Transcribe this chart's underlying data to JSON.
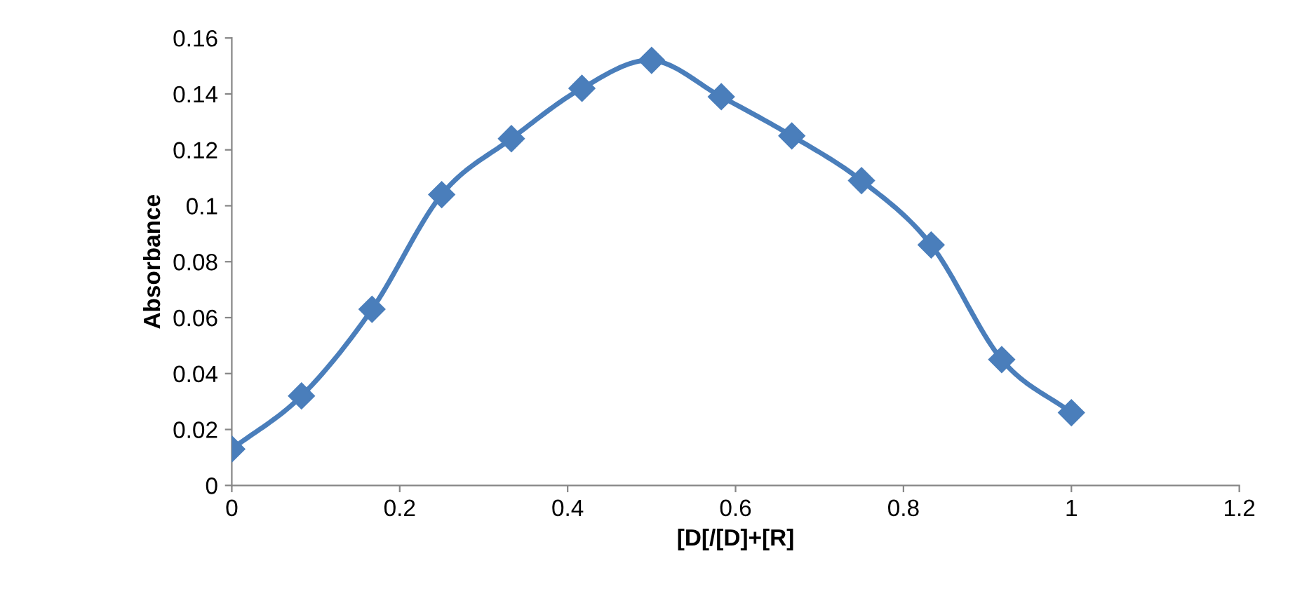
{
  "chart_data": {
    "type": "line",
    "xlabel": "[D[/[D]+[R]",
    "ylabel": "Absorbance",
    "x": [
      0,
      0.083,
      0.167,
      0.25,
      0.333,
      0.417,
      0.5,
      0.583,
      0.667,
      0.75,
      0.833,
      0.917,
      1.0
    ],
    "series": [
      {
        "color": "#4a7ebb",
        "values": [
          0.013,
          0.032,
          0.063,
          0.104,
          0.124,
          0.142,
          0.152,
          0.139,
          0.125,
          0.109,
          0.086,
          0.045,
          0.026
        ]
      }
    ],
    "xlim": [
      0,
      1.2
    ],
    "xticks": [
      0,
      0.2,
      0.4,
      0.6,
      0.8,
      1,
      1.2
    ],
    "ylim": [
      0,
      0.16
    ],
    "yticks": [
      0,
      0.02,
      0.04,
      0.06,
      0.08,
      0.1,
      0.12,
      0.14,
      0.16
    ],
    "marker": "diamond",
    "line_style": "solid",
    "grid": false,
    "legend": false
  }
}
